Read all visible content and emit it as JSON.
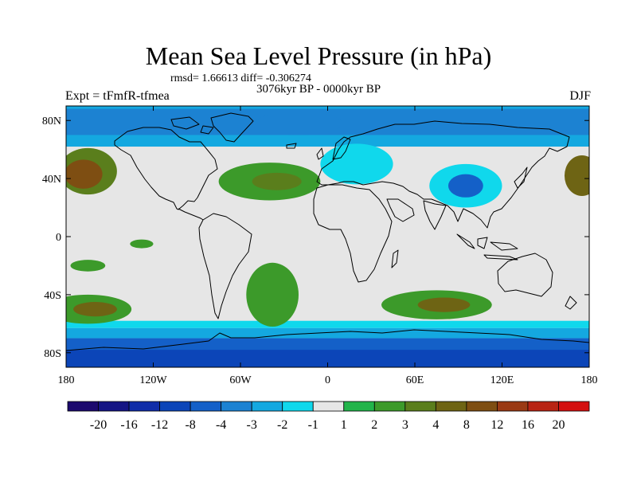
{
  "title": "Mean Sea Level Pressure (in hPa)",
  "stats": "rmsd= 1.66613 diff= -0.306274",
  "period": "3076kyr BP - 0000kyr BP",
  "experiment": "Expt = tFmfR-tfmea",
  "season": "DJF",
  "map": {
    "projection": "cylindrical equidistant",
    "lon_range": [
      -180,
      180
    ],
    "lat_range": [
      -90,
      90
    ],
    "x_ticks": [
      {
        "lon": -180,
        "label": "180"
      },
      {
        "lon": -120,
        "label": "120W"
      },
      {
        "lon": -60,
        "label": "60W"
      },
      {
        "lon": 0,
        "label": "0"
      },
      {
        "lon": 60,
        "label": "60E"
      },
      {
        "lon": 120,
        "label": "120E"
      },
      {
        "lon": 180,
        "label": "180"
      }
    ],
    "y_ticks": [
      {
        "lat": 80,
        "label": "80N"
      },
      {
        "lat": 40,
        "label": "40N"
      },
      {
        "lat": 0,
        "label": "0"
      },
      {
        "lat": -40,
        "label": "40S"
      },
      {
        "lat": -80,
        "label": "80S"
      }
    ]
  },
  "colorbar": {
    "colors": [
      "#1c0a6e",
      "#151584",
      "#102da8",
      "#0c45b8",
      "#1460c8",
      "#1c82d2",
      "#14a8e0",
      "#10d8ec",
      "#e6e6e6",
      "#22b44a",
      "#3c9a2a",
      "#5a7e1c",
      "#6e6414",
      "#7e4e12",
      "#9a3a14",
      "#b82414",
      "#d41010"
    ],
    "labels": [
      "-20",
      "-16",
      "-12",
      "-8",
      "-4",
      "-3",
      "-2",
      "-1",
      "1",
      "2",
      "3",
      "4",
      "8",
      "12",
      "16",
      "20"
    ]
  },
  "field_blobs": [
    {
      "lon": -165,
      "lat": 45,
      "rlon": 20,
      "rlat": 16,
      "level": 11
    },
    {
      "lon": -168,
      "lat": 43,
      "rlon": 13,
      "rlat": 10,
      "level": 13
    },
    {
      "lon": 175,
      "lat": 42,
      "rlon": 12,
      "rlat": 14,
      "level": 12
    },
    {
      "lon": -40,
      "lat": 38,
      "rlon": 35,
      "rlat": 13,
      "level": 10
    },
    {
      "lon": -35,
      "lat": 38,
      "rlon": 17,
      "rlat": 6,
      "level": 11
    },
    {
      "lon": -165,
      "lat": -50,
      "rlon": 30,
      "rlat": 10,
      "level": 10
    },
    {
      "lon": -160,
      "lat": -50,
      "rlon": 15,
      "rlat": 5,
      "level": 12
    },
    {
      "lon": 75,
      "lat": -47,
      "rlon": 38,
      "rlat": 10,
      "level": 10
    },
    {
      "lon": 80,
      "lat": -47,
      "rlon": 18,
      "rlat": 5,
      "level": 12
    },
    {
      "lon": -38,
      "lat": -40,
      "rlon": 18,
      "rlat": 22,
      "level": 10
    },
    {
      "lon": -48,
      "lat": 8,
      "rlon": 14,
      "rlat": 9,
      "level": 8
    },
    {
      "lon": -165,
      "lat": -20,
      "rlon": 12,
      "rlat": 4,
      "level": 10
    },
    {
      "lon": -128,
      "lat": -5,
      "rlon": 8,
      "rlat": 3,
      "level": 10
    },
    {
      "lon": 95,
      "lat": 35,
      "rlon": 25,
      "rlat": 15,
      "level": 7
    },
    {
      "lon": 95,
      "lat": 35,
      "rlon": 12,
      "rlat": 8,
      "level": 4
    },
    {
      "lon": 145,
      "lat": -28,
      "rlon": 32,
      "rlat": 16,
      "level": 8
    },
    {
      "lon": 60,
      "lat": -5,
      "rlon": 14,
      "rlat": 8,
      "level": 8
    },
    {
      "lon": 20,
      "lat": 50,
      "rlon": 25,
      "rlat": 14,
      "level": 7
    },
    {
      "lon": -20,
      "lat": 78,
      "rlon": 30,
      "rlat": 8,
      "level": 5
    }
  ],
  "zonal_bands": [
    {
      "lat_top": 90,
      "lat_bottom": 62,
      "level": 6
    },
    {
      "lat_top": 88,
      "lat_bottom": 70,
      "level": 5
    },
    {
      "lat_top": -58,
      "lat_bottom": -63,
      "level": 7
    },
    {
      "lat_top": -63,
      "lat_bottom": -70,
      "level": 6
    },
    {
      "lat_top": -70,
      "lat_bottom": -90,
      "level": 4
    },
    {
      "lat_top": -78,
      "lat_bottom": -90,
      "level": 3
    }
  ]
}
